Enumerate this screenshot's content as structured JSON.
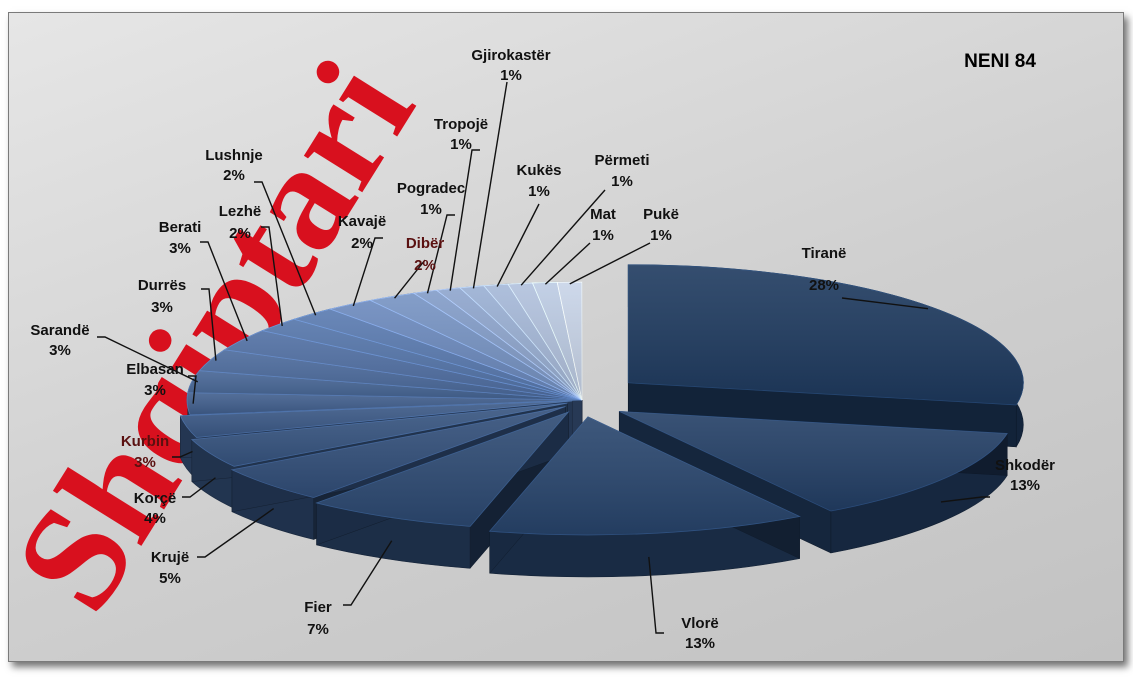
{
  "chart_data": {
    "type": "pie",
    "title": "NENI  84",
    "watermark": "Shqiptari",
    "slices": [
      {
        "label": "Tiranë",
        "value": 28,
        "pct": "28%"
      },
      {
        "label": "Shkodër",
        "value": 13,
        "pct": "13%"
      },
      {
        "label": "Vlorë",
        "value": 13,
        "pct": "13%"
      },
      {
        "label": "Fier",
        "value": 7,
        "pct": "7%"
      },
      {
        "label": "Krujë",
        "value": 5,
        "pct": "5%"
      },
      {
        "label": "Korçë",
        "value": 4,
        "pct": "4%"
      },
      {
        "label": "Kurbin",
        "value": 3,
        "pct": "3%"
      },
      {
        "label": "Elbasan",
        "value": 3,
        "pct": "3%"
      },
      {
        "label": "Sarandë",
        "value": 3,
        "pct": "3%"
      },
      {
        "label": "Durrës",
        "value": 3,
        "pct": "3%"
      },
      {
        "label": "Berati",
        "value": 3,
        "pct": "3%"
      },
      {
        "label": "Lezhë",
        "value": 2,
        "pct": "2%"
      },
      {
        "label": "Lushnje",
        "value": 2,
        "pct": "2%"
      },
      {
        "label": "Kavajë",
        "value": 2,
        "pct": "2%"
      },
      {
        "label": "Dibër",
        "value": 2,
        "pct": "2%"
      },
      {
        "label": "Pogradec",
        "value": 1,
        "pct": "1%"
      },
      {
        "label": "Tropojë",
        "value": 1,
        "pct": "1%"
      },
      {
        "label": "Gjirokastër",
        "value": 1,
        "pct": "1%"
      },
      {
        "label": "Kukës",
        "value": 1,
        "pct": "1%"
      },
      {
        "label": "Përmeti",
        "value": 1,
        "pct": "1%"
      },
      {
        "label": "Mat",
        "value": 1,
        "pct": "1%"
      },
      {
        "label": "Pukë",
        "value": 1,
        "pct": "1%"
      }
    ],
    "legend": "none",
    "colors": {
      "dark": "#1e3a5f",
      "light": "#c8d4e8",
      "label": "#111111",
      "label_alt": "#5a1010",
      "watermark": "#d8101e"
    }
  }
}
